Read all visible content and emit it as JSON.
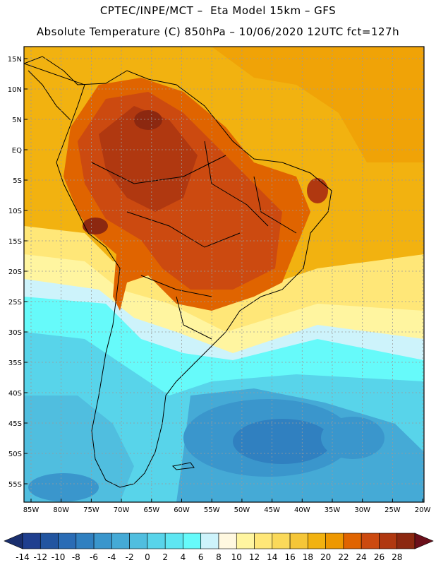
{
  "header": {
    "line1": "CPTEC/INPE/MCT –  Eta Model 15km – GFS",
    "line2": "Absolute Temperature (C) 850hPa – 10/06/2020 12UTC fct=127h"
  },
  "map": {
    "lat_labels": [
      "15N",
      "10N",
      "5N",
      "EQ",
      "5S",
      "10S",
      "15S",
      "20S",
      "25S",
      "30S",
      "35S",
      "40S",
      "45S",
      "50S",
      "55S"
    ],
    "lon_labels": [
      "85W",
      "80W",
      "75W",
      "70W",
      "65W",
      "60W",
      "55W",
      "50W",
      "45W",
      "40W",
      "35W",
      "30W",
      "25W",
      "20W"
    ]
  },
  "colorbar": {
    "labels": [
      "-14",
      "-12",
      "-10",
      "-8",
      "-6",
      "-4",
      "-2",
      "0",
      "2",
      "4",
      "6",
      "8",
      "10",
      "12",
      "14",
      "16",
      "18",
      "20",
      "22",
      "24",
      "26",
      "28"
    ],
    "colors": [
      "#1f3f8f",
      "#2255a0",
      "#2a6cb5",
      "#3080c0",
      "#3a96cc",
      "#45aad6",
      "#50bedf",
      "#58d4ea",
      "#5ee6f2",
      "#66fafa",
      "#cdf3fb",
      "#fff8e0",
      "#fff5a0",
      "#ffe778",
      "#fad95a",
      "#f5c638",
      "#f2b210",
      "#ee9800",
      "#e06400",
      "#cc4a10",
      "#b03810",
      "#8c2810"
    ],
    "under_color": "#1a2f6e",
    "over_color": "#6b0f1a"
  },
  "colors": {
    "warm_bg": "#f2b210",
    "hot": "#cc4a10",
    "hotter": "#b03810",
    "cold_band": "#5ee6f2",
    "deep_cold": "#2a6cb5"
  }
}
